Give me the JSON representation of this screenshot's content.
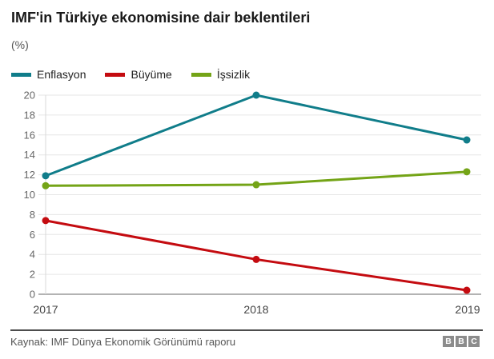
{
  "title": "IMF'in Türkiye ekonomisine dair beklentileri",
  "subtitle": "(%)",
  "legend": [
    {
      "id": "enflasyon",
      "label": "Enflasyon",
      "color": "#107d8a"
    },
    {
      "id": "buyume",
      "label": "Büyüme",
      "color": "#c40b10"
    },
    {
      "id": "issizlik",
      "label": "İşsizlik",
      "color": "#74a417"
    }
  ],
  "chart_data": {
    "type": "line",
    "title": "IMF'in Türkiye ekonomisine dair beklentileri",
    "ylabel": "(%)",
    "x": [
      "2017",
      "2018",
      "2019"
    ],
    "series": [
      {
        "id": "enflasyon",
        "name": "Enflasyon",
        "color": "#107d8a",
        "values": [
          11.9,
          20,
          15.5
        ]
      },
      {
        "id": "buyume",
        "name": "Büyüme",
        "color": "#c40b10",
        "values": [
          7.4,
          3.5,
          0.4
        ]
      },
      {
        "id": "issizlik",
        "name": "İşsizlik",
        "color": "#74a417",
        "values": [
          10.9,
          11,
          12.3
        ]
      }
    ],
    "ylim": [
      0,
      20
    ],
    "ytick_step": 2,
    "grid": true,
    "legend_position": "top-left",
    "colors": {
      "gridline": "#e6e6e6",
      "baseline": "#b3b3b3",
      "axis_line": "#d9d9d9",
      "tick_label": "#666666",
      "x_label": "#444444"
    }
  },
  "footer": {
    "source": "Kaynak: IMF Dünya Ekonomik Görünümü raporu",
    "logo_letters": [
      "B",
      "B",
      "C"
    ],
    "logo_color": "#8c8c8c"
  }
}
